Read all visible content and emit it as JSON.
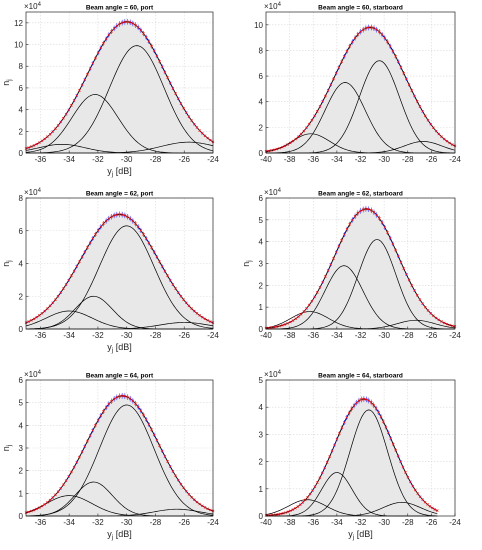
{
  "figure": {
    "background": "#ffffff",
    "fill_color": "#e8e8e8",
    "component_color": "#000000",
    "marker_color": "#ff0000",
    "errbar_color": "#3333ff"
  },
  "chart_data": [
    {
      "type": "area",
      "title": "Beam angle = 60, port",
      "xlabel": "y_j [dB]",
      "ylabel": "n_j",
      "exponent": "×10^4",
      "xlim": [
        -37,
        -24
      ],
      "ylim": [
        0,
        13
      ],
      "xticks": [
        -36,
        -34,
        -32,
        -30,
        -28,
        -26,
        -24
      ],
      "yticks": [
        0,
        2,
        4,
        6,
        8,
        10,
        12
      ],
      "grid": true,
      "total": {
        "amplitude": 12.1,
        "mean": -30.0,
        "sd": 2.7,
        "range": [
          -37,
          -24
        ]
      },
      "components": [
        {
          "amplitude": 0.8,
          "mean": -34.5,
          "sd": 1.6
        },
        {
          "amplitude": 5.4,
          "mean": -32.2,
          "sd": 1.6
        },
        {
          "amplitude": 9.9,
          "mean": -29.3,
          "sd": 1.9
        },
        {
          "amplitude": 1.0,
          "mean": -25.7,
          "sd": 1.9
        }
      ]
    },
    {
      "type": "area",
      "title": "Beam angle = 60, starboard",
      "xlabel": "",
      "ylabel": "",
      "exponent": "×10^4",
      "xlim": [
        -40,
        -24
      ],
      "ylim": [
        0,
        11
      ],
      "xticks": [
        -40,
        -38,
        -36,
        -34,
        -32,
        -30,
        -28,
        -26,
        -24
      ],
      "yticks": [
        0,
        2,
        4,
        6,
        8,
        10
      ],
      "grid": true,
      "total": {
        "amplitude": 9.8,
        "mean": -31.2,
        "sd": 3.0,
        "range": [
          -40,
          -24
        ]
      },
      "components": [
        {
          "amplitude": 1.5,
          "mean": -36.2,
          "sd": 1.6
        },
        {
          "amplitude": 5.5,
          "mean": -33.3,
          "sd": 1.7
        },
        {
          "amplitude": 7.2,
          "mean": -30.4,
          "sd": 1.7
        },
        {
          "amplitude": 0.9,
          "mean": -26.7,
          "sd": 1.6
        }
      ]
    },
    {
      "type": "area",
      "title": "Beam angle = 62, port",
      "xlabel": "y_j [dB]",
      "ylabel": "n_j",
      "exponent": "×10^4",
      "xlim": [
        -37,
        -24
      ],
      "ylim": [
        0,
        8
      ],
      "xticks": [
        -36,
        -34,
        -32,
        -30,
        -28,
        -26,
        -24
      ],
      "yticks": [
        0,
        2,
        4,
        6,
        8
      ],
      "grid": true,
      "total": {
        "amplitude": 7.0,
        "mean": -30.5,
        "sd": 2.7,
        "range": [
          -37,
          -24
        ]
      },
      "components": [
        {
          "amplitude": 1.1,
          "mean": -34.0,
          "sd": 1.6
        },
        {
          "amplitude": 2.0,
          "mean": -32.3,
          "sd": 1.3
        },
        {
          "amplitude": 6.3,
          "mean": -30.0,
          "sd": 1.9
        },
        {
          "amplitude": 0.4,
          "mean": -26.0,
          "sd": 1.7
        }
      ]
    },
    {
      "type": "area",
      "title": "Beam angle = 62, starboard",
      "xlabel": "",
      "ylabel": "n_j",
      "exponent": "×10^4",
      "xlim": [
        -40,
        -24
      ],
      "ylim": [
        0,
        6
      ],
      "xticks": [
        -40,
        -38,
        -36,
        -34,
        -32,
        -30,
        -28,
        -26,
        -24
      ],
      "yticks": [
        0,
        1,
        2,
        3,
        4,
        5,
        6
      ],
      "grid": true,
      "total": {
        "amplitude": 5.5,
        "mean": -31.5,
        "sd": 2.7,
        "range": [
          -40,
          -24
        ]
      },
      "components": [
        {
          "amplitude": 0.8,
          "mean": -36.3,
          "sd": 1.6
        },
        {
          "amplitude": 2.9,
          "mean": -33.4,
          "sd": 1.6
        },
        {
          "amplitude": 4.1,
          "mean": -30.6,
          "sd": 1.6
        },
        {
          "amplitude": 0.4,
          "mean": -27.3,
          "sd": 1.6
        }
      ]
    },
    {
      "type": "area",
      "title": "Beam angle = 64, port",
      "xlabel": "y_j [dB]",
      "ylabel": "n_j",
      "exponent": "×10^4",
      "xlim": [
        -37,
        -24
      ],
      "ylim": [
        0,
        6
      ],
      "xticks": [
        -36,
        -34,
        -32,
        -30,
        -28,
        -26,
        -24
      ],
      "yticks": [
        0,
        1,
        2,
        3,
        4,
        5,
        6
      ],
      "grid": true,
      "total": {
        "amplitude": 5.3,
        "mean": -30.3,
        "sd": 2.5,
        "range": [
          -37,
          -24
        ]
      },
      "components": [
        {
          "amplitude": 0.9,
          "mean": -34.0,
          "sd": 1.6
        },
        {
          "amplitude": 1.5,
          "mean": -32.3,
          "sd": 1.3
        },
        {
          "amplitude": 4.9,
          "mean": -30.0,
          "sd": 1.9
        },
        {
          "amplitude": 0.3,
          "mean": -26.5,
          "sd": 1.6
        }
      ]
    },
    {
      "type": "area",
      "title": "Beam angle = 64, starboard",
      "xlabel": "y_j [dB]",
      "ylabel": "",
      "exponent": "×10^4",
      "xlim": [
        -40,
        -24
      ],
      "ylim": [
        0,
        5
      ],
      "xticks": [
        -40,
        -38,
        -36,
        -34,
        -32,
        -30,
        -28,
        -26,
        -24
      ],
      "yticks": [
        0,
        1,
        2,
        3,
        4,
        5
      ],
      "grid": true,
      "total": {
        "amplitude": 4.3,
        "mean": -31.7,
        "sd": 2.5,
        "range": [
          -40,
          -25.5
        ]
      },
      "components": [
        {
          "amplitude": 0.6,
          "mean": -36.5,
          "sd": 1.6
        },
        {
          "amplitude": 1.6,
          "mean": -34.0,
          "sd": 1.3
        },
        {
          "amplitude": 3.9,
          "mean": -31.3,
          "sd": 1.6
        },
        {
          "amplitude": 0.5,
          "mean": -28.5,
          "sd": 1.6
        }
      ]
    }
  ]
}
